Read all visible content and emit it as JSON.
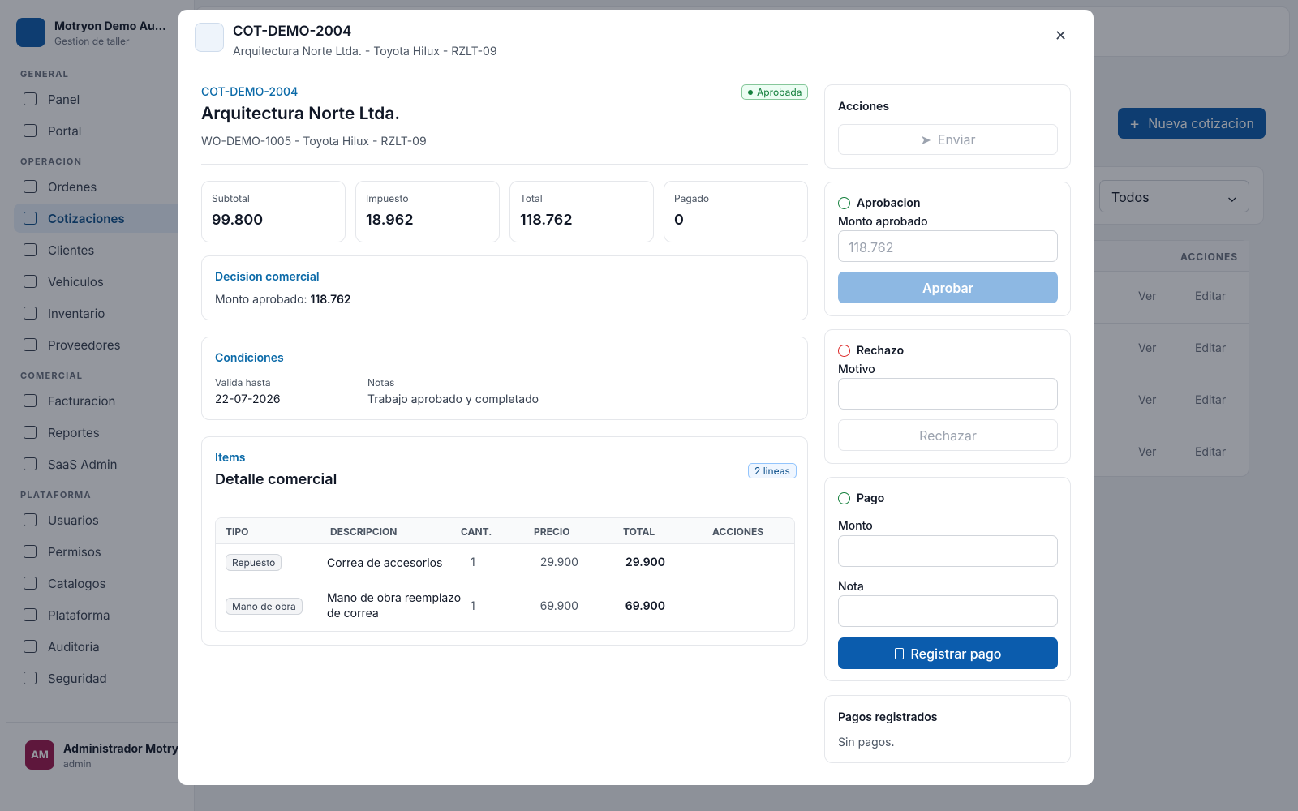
{
  "sidebar": {
    "brand": {
      "name": "Motryon Demo Au…",
      "subtitle": "Gestion de taller"
    },
    "sections": [
      {
        "title": "GENERAL",
        "items": [
          "Panel",
          "Portal"
        ]
      },
      {
        "title": "OPERACION",
        "items": [
          "Ordenes",
          "Cotizaciones",
          "Clientes",
          "Vehiculos",
          "Inventario",
          "Proveedores"
        ]
      },
      {
        "title": "COMERCIAL",
        "items": [
          "Facturacion",
          "Reportes",
          "SaaS Admin"
        ]
      },
      {
        "title": "PLATAFORMA",
        "items": [
          "Usuarios",
          "Permisos",
          "Catalogos",
          "Plataforma",
          "Auditoria",
          "Seguridad"
        ]
      }
    ],
    "active": "Cotizaciones",
    "user": {
      "initials": "AM",
      "name": "Administrador Motry…",
      "role": "admin"
    }
  },
  "background": {
    "new_button": "Nueva cotizacion",
    "filter": "Todos",
    "actions_header": "ACCIONES",
    "rows": [
      [
        "Ver",
        "Editar"
      ],
      [
        "Ver",
        "Editar"
      ],
      [
        "Ver",
        "Editar"
      ],
      [
        "Ver",
        "Editar"
      ]
    ]
  },
  "modal": {
    "header": {
      "code": "COT-DEMO-2004",
      "subtitle": "Arquitectura Norte Ltda. - Toyota Hilux - RZLT-09"
    },
    "summary": {
      "code": "COT-DEMO-2004",
      "status": "Aprobada",
      "client": "Arquitectura Norte Ltda.",
      "reference": "WO-DEMO-1005 - Toyota Hilux - RZLT-09"
    },
    "stats": [
      {
        "label": "Subtotal",
        "value": "99.800"
      },
      {
        "label": "Impuesto",
        "value": "18.962"
      },
      {
        "label": "Total",
        "value": "118.762"
      },
      {
        "label": "Pagado",
        "value": "0"
      }
    ],
    "decision": {
      "title": "Decision comercial",
      "label": "Monto aprobado:",
      "value": "118.762"
    },
    "conditions": {
      "title": "Condiciones",
      "fields": [
        {
          "label": "Valida hasta",
          "value": "22-07-2026"
        },
        {
          "label": "Notas",
          "value": "Trabajo aprobado y completado"
        }
      ]
    },
    "items": {
      "eyebrow": "Items",
      "title": "Detalle comercial",
      "badge": "2 lineas",
      "columns": [
        "TIPO",
        "DESCRIPCION",
        "CANT.",
        "PRECIO",
        "TOTAL",
        "ACCIONES"
      ],
      "rows": [
        [
          "Repuesto",
          "Correa de accesorios",
          "1",
          "29.900",
          "29.900"
        ],
        [
          "Mano de obra",
          "Mano de obra reemplazo de correa",
          "1",
          "69.900",
          "69.900"
        ]
      ]
    },
    "actions": {
      "title": "Acciones",
      "button": "Enviar"
    },
    "approval": {
      "title": "Aprobacion",
      "label": "Monto aprobado",
      "placeholder": "118.762",
      "button": "Aprobar"
    },
    "rejection": {
      "title": "Rechazo",
      "label": "Motivo",
      "button": "Rechazar"
    },
    "payment": {
      "title": "Pago",
      "amount_label": "Monto",
      "note_label": "Nota",
      "button": "Registrar pago"
    },
    "payments": {
      "title": "Pagos registrados",
      "empty": "Sin pagos."
    }
  }
}
